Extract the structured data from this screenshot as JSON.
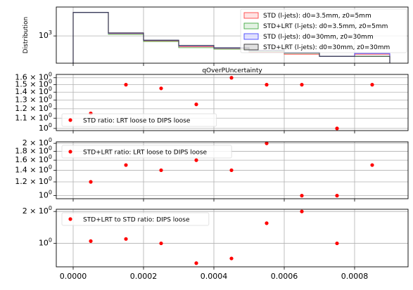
{
  "chart_data": [
    {
      "type": "line",
      "title": "",
      "ylabel": "Distribution",
      "xlabel": "qOverPUncertainty",
      "y_scale": "log",
      "yticks": [
        "10^3"
      ],
      "grid": true,
      "legend_position": "top-right",
      "bin_edges": [
        0.0,
        0.0001,
        0.0002,
        0.0003,
        0.0004,
        0.0005,
        0.0006,
        0.0007,
        0.0008,
        0.0009
      ],
      "series": [
        {
          "name": "STD (l-jets): d0=3.5mm, z0=5mm",
          "color": "#ff4444",
          "values": [
            4000,
            1150,
            750,
            530,
            470,
            385,
            340,
            300,
            340
          ]
        },
        {
          "name": "STD+LRT (l-jets): d0=3.5mm, z0=5mm",
          "color": "#44aa44",
          "values": [
            4000,
            1100,
            720,
            500,
            460,
            400,
            360,
            300,
            300
          ]
        },
        {
          "name": "STD (l-jets): d0=30mm, z0=30mm",
          "color": "#4444ff",
          "values": [
            4000,
            1180,
            770,
            560,
            490,
            420,
            370,
            300,
            355
          ]
        },
        {
          "name": "STD+LRT (l-jets): d0=30mm, z0=30mm",
          "color": "#333333",
          "values": [
            4000,
            1200,
            780,
            570,
            500,
            430,
            380,
            300,
            300
          ]
        }
      ]
    },
    {
      "type": "scatter",
      "y_scale": "log",
      "yticks": [
        "1.6 × 10^0",
        "1.5 × 10^0",
        "1.4 × 10^0",
        "1.3 × 10^0",
        "1.2 × 10^0",
        "1.1 × 10^0",
        "10^0"
      ],
      "legend_position": "bottom-left",
      "series": [
        {
          "name": "STD ratio: LRT loose to DIPS loose",
          "color": "#ff0000",
          "x": [
            5e-05,
            0.00015,
            0.00025,
            0.00035,
            0.00045,
            0.00055,
            0.00065,
            0.00075,
            0.00085
          ],
          "y": [
            1.15,
            1.5,
            1.45,
            1.25,
            1.6,
            1.5,
            1.5,
            1.0,
            1.5
          ]
        }
      ]
    },
    {
      "type": "scatter",
      "y_scale": "log",
      "yticks": [
        "2 × 10^0",
        "1.8 × 10^0",
        "1.6 × 10^0",
        "1.4 × 10^0",
        "1.2 × 10^0",
        "10^0"
      ],
      "legend_position": "top-left",
      "series": [
        {
          "name": "STD+LRT ratio: LRT loose to DIPS loose",
          "color": "#ff0000",
          "x": [
            5e-05,
            0.00015,
            0.00025,
            0.00035,
            0.00045,
            0.00055,
            0.00065,
            0.00075,
            0.00085
          ],
          "y": [
            1.2,
            1.5,
            1.4,
            1.6,
            1.4,
            2.0,
            1.0,
            1.0,
            1.5
          ]
        }
      ]
    },
    {
      "type": "scatter",
      "y_scale": "log",
      "yticks": [
        "2 × 10^0",
        "10^0"
      ],
      "xticks": [
        "0.0000",
        "0.0002",
        "0.0004",
        "0.0006",
        "0.0008"
      ],
      "legend_position": "top-left",
      "series": [
        {
          "name": "STD+LRT to STD ratio: DIPS loose",
          "color": "#ff0000",
          "x": [
            5e-05,
            0.00015,
            0.00025,
            0.00035,
            0.00045,
            0.00055,
            0.00065,
            0.00075
          ],
          "y": [
            1.05,
            1.1,
            1.0,
            0.65,
            0.72,
            1.55,
            2.0,
            1.0
          ]
        }
      ]
    }
  ]
}
